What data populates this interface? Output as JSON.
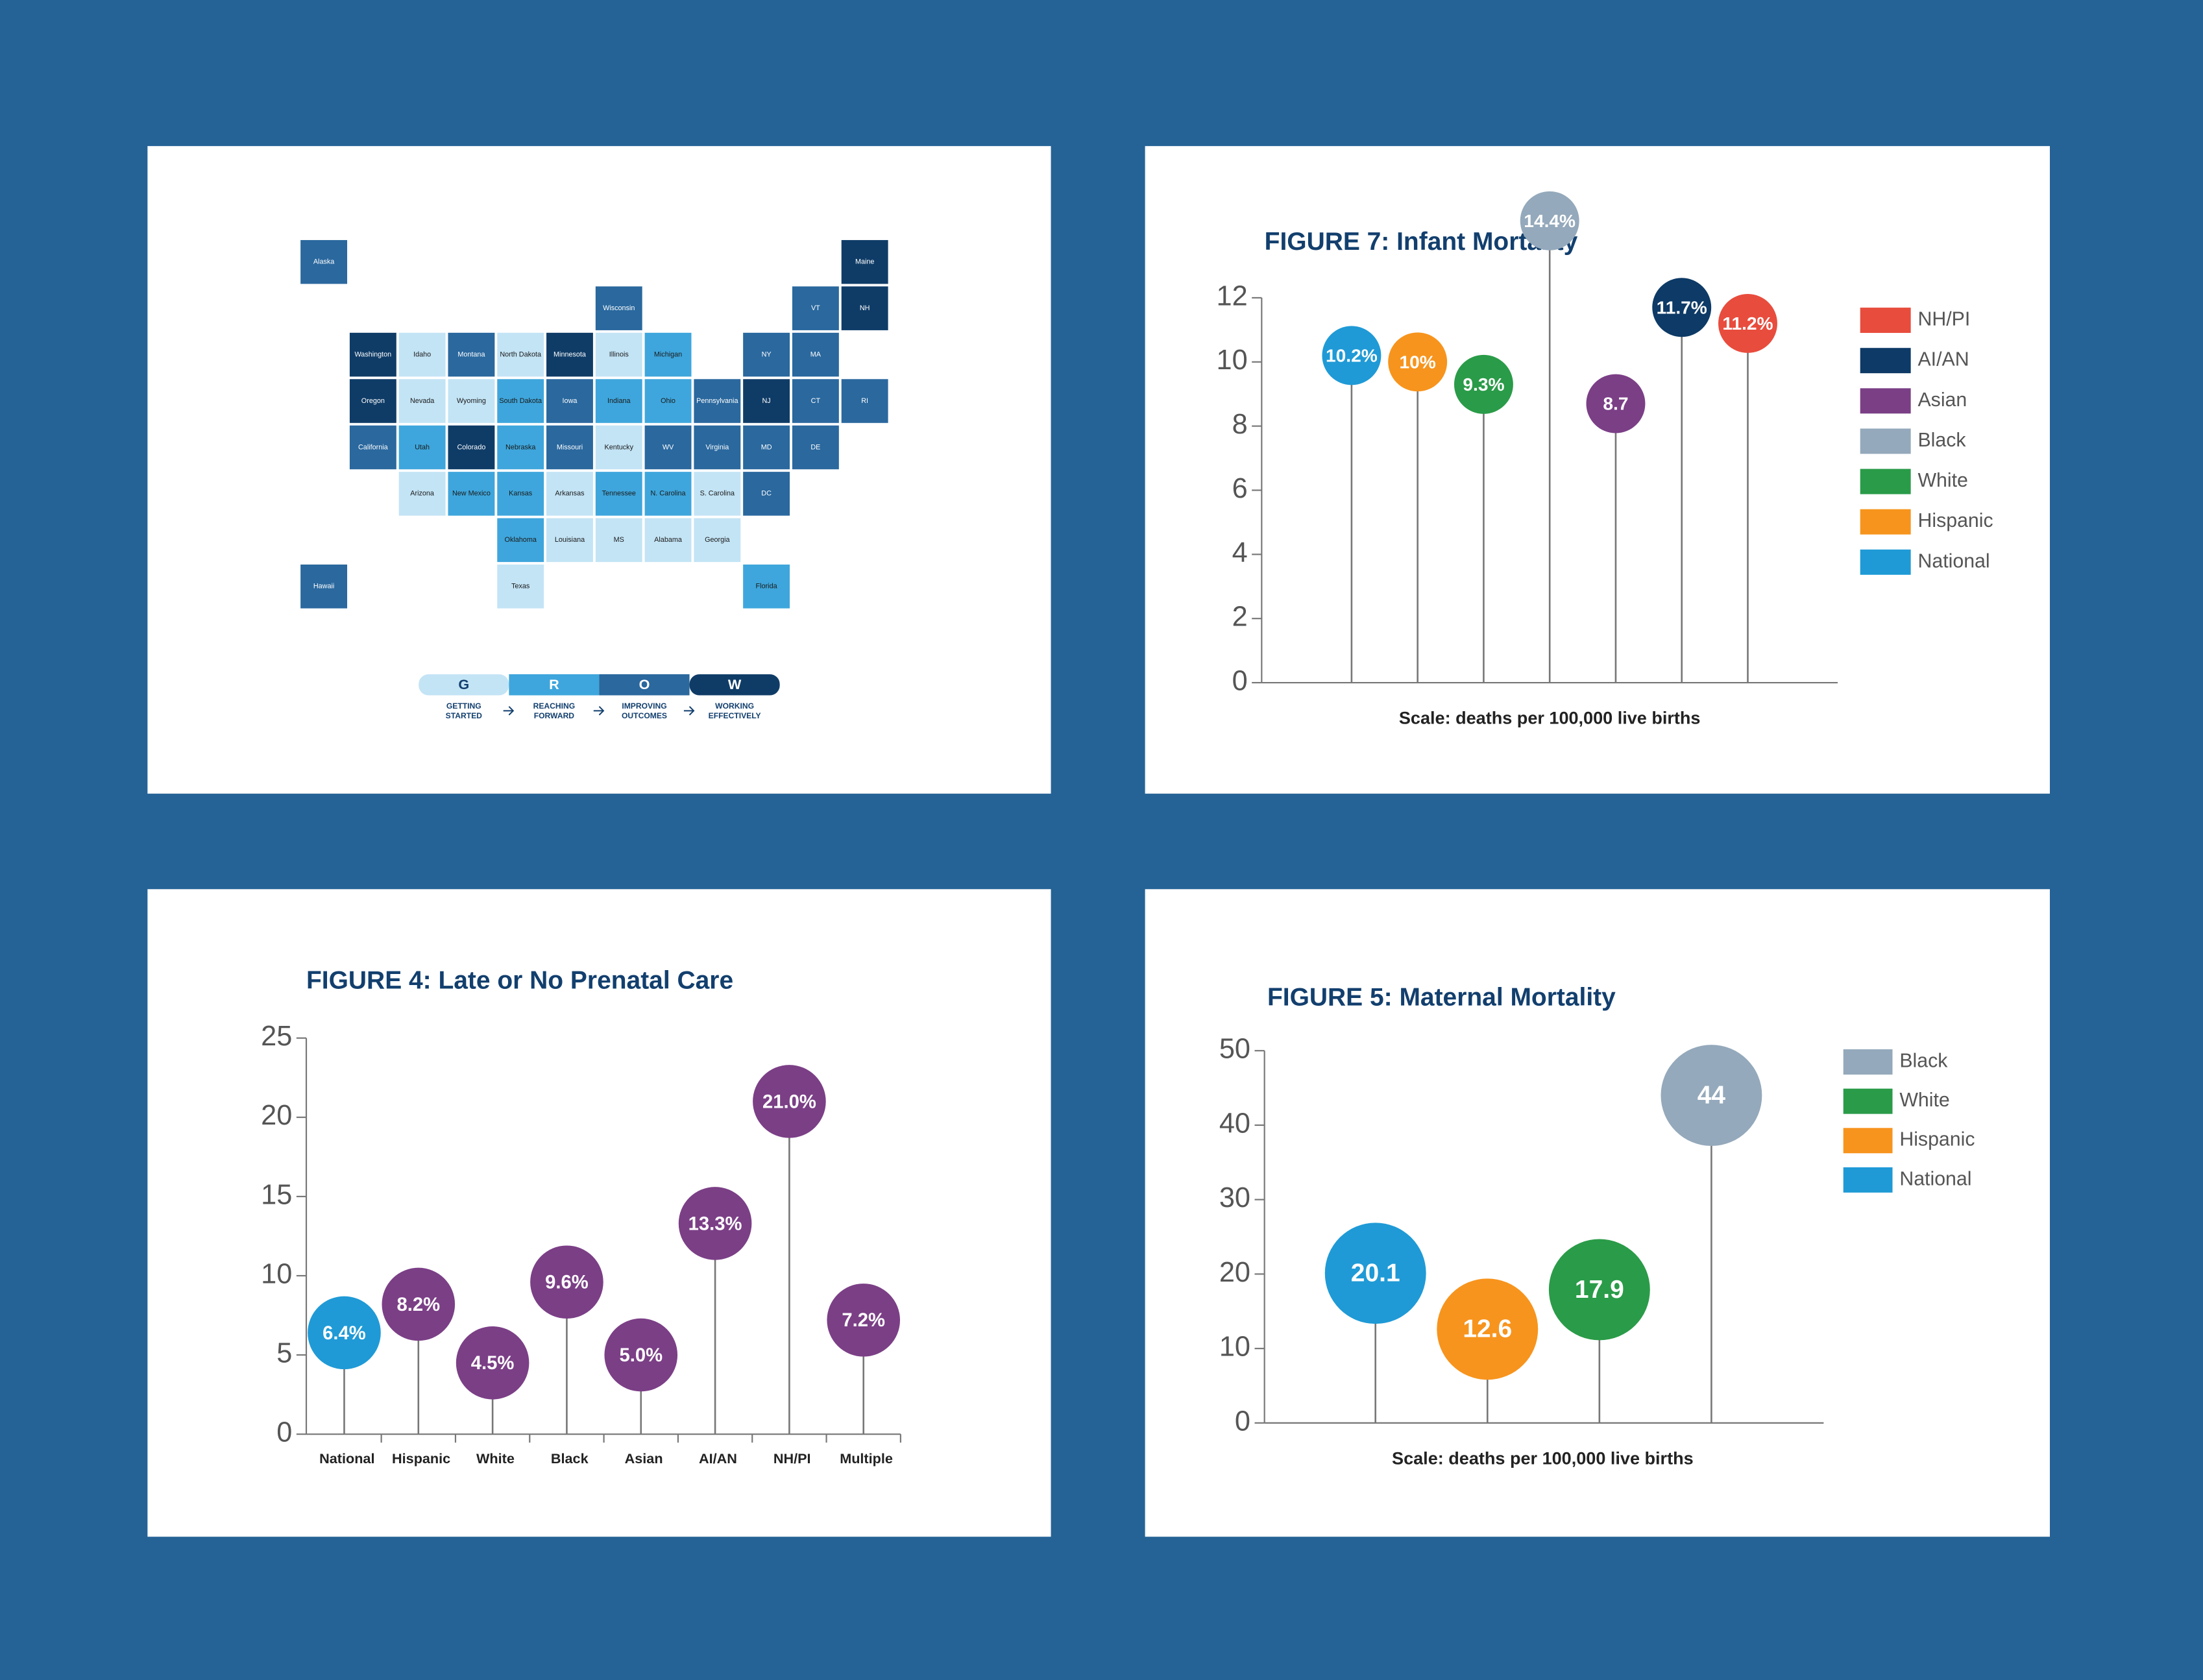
{
  "map": {
    "levels": [
      {
        "letter": "G",
        "label": [
          "GETTING",
          "STARTED"
        ],
        "color": "#c3e4f5"
      },
      {
        "letter": "R",
        "label": [
          "REACHING",
          "FORWARD"
        ],
        "color": "#3ea6dc"
      },
      {
        "letter": "O",
        "label": [
          "IMPROVING",
          "OUTCOMES"
        ],
        "color": "#2a689e"
      },
      {
        "letter": "W",
        "label": [
          "WORKING",
          "EFFECTIVELY"
        ],
        "color": "#0f3c67"
      }
    ],
    "states": [
      {
        "label": "Washington",
        "level": "W"
      },
      {
        "label": "Oregon",
        "level": "W"
      },
      {
        "label": "California",
        "level": "O"
      },
      {
        "label": "Nevada",
        "level": "G"
      },
      {
        "label": "Idaho",
        "level": "G"
      },
      {
        "label": "Montana",
        "level": "O"
      },
      {
        "label": "Wyoming",
        "level": "G"
      },
      {
        "label": "Utah",
        "level": "R"
      },
      {
        "label": "Colorado",
        "level": "W"
      },
      {
        "label": "Arizona",
        "level": "G"
      },
      {
        "label": "New Mexico",
        "level": "R"
      },
      {
        "label": "North Dakota",
        "level": "G"
      },
      {
        "label": "South Dakota",
        "level": "R"
      },
      {
        "label": "Nebraska",
        "level": "R"
      },
      {
        "label": "Kansas",
        "level": "R"
      },
      {
        "label": "Oklahoma",
        "level": "R"
      },
      {
        "label": "Texas",
        "level": "G"
      },
      {
        "label": "Minnesota",
        "level": "W"
      },
      {
        "label": "Iowa",
        "level": "O"
      },
      {
        "label": "Missouri",
        "level": "O"
      },
      {
        "label": "Arkansas",
        "level": "G"
      },
      {
        "label": "Louisiana",
        "level": "G"
      },
      {
        "label": "Wisconsin",
        "level": "O"
      },
      {
        "label": "Illinois",
        "level": "G"
      },
      {
        "label": "Michigan",
        "level": "R"
      },
      {
        "label": "Indiana",
        "level": "R"
      },
      {
        "label": "Ohio",
        "level": "R"
      },
      {
        "label": "Kentucky",
        "level": "G"
      },
      {
        "label": "Tennessee",
        "level": "R"
      },
      {
        "label": "MS",
        "level": "G"
      },
      {
        "label": "Alabama",
        "level": "G"
      },
      {
        "label": "Georgia",
        "level": "G"
      },
      {
        "label": "Florida",
        "level": "R"
      },
      {
        "label": "S. Carolina",
        "level": "G"
      },
      {
        "label": "N. Carolina",
        "level": "R"
      },
      {
        "label": "Virginia",
        "level": "O"
      },
      {
        "label": "WV",
        "level": "O"
      },
      {
        "label": "Pennsylvania",
        "level": "O"
      },
      {
        "label": "NY",
        "level": "O"
      },
      {
        "label": "VT",
        "level": "O"
      },
      {
        "label": "Maine",
        "level": "W"
      },
      {
        "label": "NH",
        "level": "W"
      },
      {
        "label": "MA",
        "level": "O"
      },
      {
        "label": "RI",
        "level": "O"
      },
      {
        "label": "CT",
        "level": "O"
      },
      {
        "label": "NJ",
        "level": "W"
      },
      {
        "label": "DE",
        "level": "O"
      },
      {
        "label": "MD",
        "level": "O"
      },
      {
        "label": "DC",
        "level": "O"
      },
      {
        "label": "Alaska",
        "level": "O"
      },
      {
        "label": "Hawaii",
        "level": "O"
      }
    ]
  },
  "chart_data": [
    {
      "type": "lollipop",
      "title": "FIGURE 7: Infant Mortality",
      "note": "Scale: deaths per 100,000 live births",
      "ylim": [
        0,
        12
      ],
      "yticks": [
        0,
        2,
        4,
        6,
        8,
        10,
        12
      ],
      "series": [
        {
          "name": "National",
          "color": "#1f9ad6",
          "values": [
            10.2
          ],
          "value_labels": [
            "10.2%"
          ]
        },
        {
          "name": "Hispanic",
          "color": "#f7941d",
          "values": [
            10
          ],
          "value_labels": [
            "10%"
          ]
        },
        {
          "name": "White",
          "color": "#2a9b48",
          "values": [
            9.3
          ],
          "value_labels": [
            "9.3%"
          ]
        },
        {
          "name": "Black",
          "color": "#94a9bb",
          "values": [
            14.4
          ],
          "value_labels": [
            "14.4%"
          ]
        },
        {
          "name": "Asian",
          "color": "#7b3f86",
          "values": [
            8.7
          ]
        },
        {
          "name": "AI/AN",
          "color": "#0d3a66",
          "values": [
            11.7
          ],
          "value_labels": [
            "11.7%"
          ]
        },
        {
          "name": "NH/PI",
          "color": "#e84c3d",
          "values": [
            11.2
          ],
          "value_labels": [
            "11.2%"
          ]
        }
      ]
    },
    {
      "type": "lollipop",
      "title": "FIGURE 4: Late or No Prenatal Care",
      "ylim": [
        0,
        25
      ],
      "yticks": [
        0,
        5,
        10,
        15,
        20,
        25
      ],
      "categories": [
        "National",
        "Hispanic",
        "White",
        "Black",
        "Asian",
        "AI/AN",
        "NH/PI",
        "Multiple"
      ],
      "values": [
        6.4,
        8.2,
        4.5,
        9.6,
        5.0,
        13.3,
        21.0,
        7.2
      ],
      "value_labels": [
        "6.4%",
        "8.2%",
        "4.5%",
        "9.6%",
        "5.0%",
        "13.3%",
        "21.0%",
        "7.2%"
      ],
      "colors": [
        "#1f9ad6",
        "#7b3f86",
        "#7b3f86",
        "#7b3f86",
        "#7b3f86",
        "#7b3f86",
        "#7b3f86",
        "#7b3f86"
      ]
    },
    {
      "type": "lollipop",
      "title": "FIGURE 5: Maternal Mortality",
      "note": "Scale: deaths per 100,000 live births",
      "ylim": [
        0,
        50
      ],
      "yticks": [
        0,
        10,
        20,
        30,
        40,
        50
      ],
      "series": [
        {
          "name": "National",
          "color": "#1f9ad6",
          "values": [
            20.1
          ]
        },
        {
          "name": "Hispanic",
          "color": "#f7941d",
          "values": [
            12.6
          ]
        },
        {
          "name": "White",
          "color": "#2a9b48",
          "values": [
            17.9
          ]
        },
        {
          "name": "Black",
          "color": "#94a9bb",
          "values": [
            44
          ]
        }
      ]
    }
  ]
}
